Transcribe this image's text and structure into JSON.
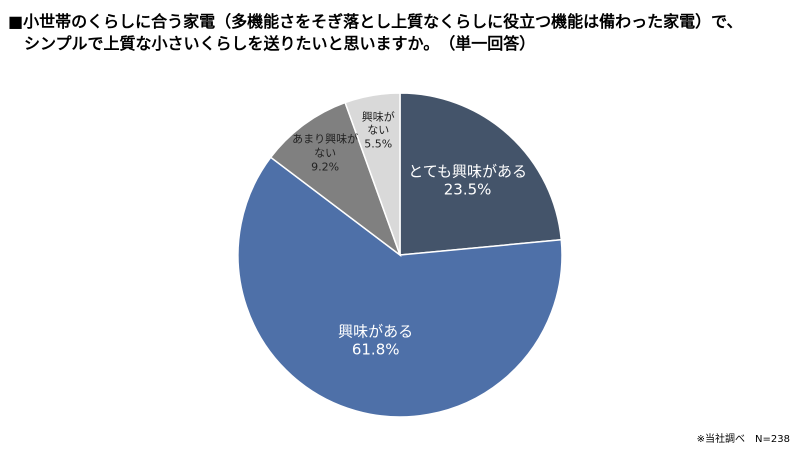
{
  "chart_data": {
    "type": "pie",
    "title": "■小世帯のくらしに合う家電（多機能さをそぎ落とし上質なくらしに役立つ機能は備わった家電）で、",
    "subtitle": "シンプルで上質な小さいくらしを送りたいと思いますか。　（単一回答）",
    "categories": [
      "とても興味がある",
      "興味がある",
      "あまり興味がない",
      "興味がない"
    ],
    "values": [
      23.5,
      61.8,
      9.2,
      5.5
    ],
    "value_labels": [
      "23.5%",
      "61.8%",
      "9.2%",
      "5.5%"
    ],
    "colors": [
      "#44546a",
      "#4e70a8",
      "#808080",
      "#d9d9d9"
    ],
    "footnote": "※当社調べ　N=238"
  }
}
